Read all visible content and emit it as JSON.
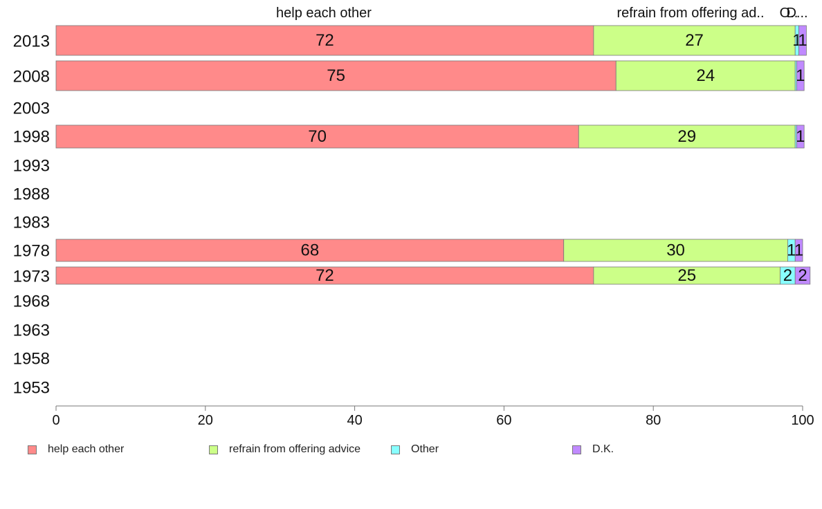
{
  "chart_data": {
    "type": "bar",
    "orientation": "horizontal",
    "stacked": true,
    "categories": [
      "2013",
      "2008",
      "2003",
      "1998",
      "1993",
      "1988",
      "1983",
      "1978",
      "1973",
      "1968",
      "1963",
      "1958",
      "1953"
    ],
    "series": [
      {
        "name": "help each other",
        "color": "#ff8a8a",
        "values": [
          72,
          75,
          null,
          70,
          null,
          null,
          null,
          68,
          72,
          null,
          null,
          null,
          null
        ]
      },
      {
        "name": "refrain from offering advice",
        "color": "#ccff88",
        "values": [
          27,
          24,
          null,
          29,
          null,
          null,
          null,
          30,
          25,
          null,
          null,
          null,
          null
        ]
      },
      {
        "name": "Other",
        "color": "#88ffff",
        "values": [
          0.5,
          0.2,
          null,
          0.2,
          null,
          null,
          null,
          1,
          2,
          null,
          null,
          null,
          null
        ]
      },
      {
        "name": "D.K.",
        "color": "#c08aff",
        "values": [
          1,
          1,
          null,
          1,
          null,
          null,
          null,
          1,
          2,
          null,
          null,
          null,
          null
        ]
      }
    ],
    "data_labels": [
      [
        "72",
        "27",
        "1",
        "1"
      ],
      [
        "75",
        "24",
        "",
        "1"
      ],
      [
        "",
        "",
        "",
        ""
      ],
      [
        "70",
        "29",
        "",
        "1"
      ],
      [
        "",
        "",
        "",
        ""
      ],
      [
        "",
        "",
        "",
        ""
      ],
      [
        "",
        "",
        "",
        ""
      ],
      [
        "68",
        "30",
        "1",
        "1"
      ],
      [
        "72",
        "25",
        "2",
        "2"
      ],
      [
        "",
        "",
        "",
        ""
      ],
      [
        "",
        "",
        "",
        ""
      ],
      [
        "",
        "",
        "",
        ""
      ],
      [
        "",
        "",
        "",
        ""
      ]
    ],
    "top_labels": [
      "help each other",
      "refrain from offering ad..",
      "O..",
      "D..."
    ],
    "xlim": [
      0,
      100
    ],
    "xticks": [
      "0",
      "20",
      "40",
      "60",
      "80",
      "100"
    ],
    "legend_position": "bottom",
    "grid": false
  },
  "legend": [
    {
      "label": "help each other",
      "color": "#ff8a8a"
    },
    {
      "label": "refrain from offering advice",
      "color": "#ccff88"
    },
    {
      "label": "Other",
      "color": "#88ffff"
    },
    {
      "label": "D.K.",
      "color": "#c08aff"
    }
  ]
}
